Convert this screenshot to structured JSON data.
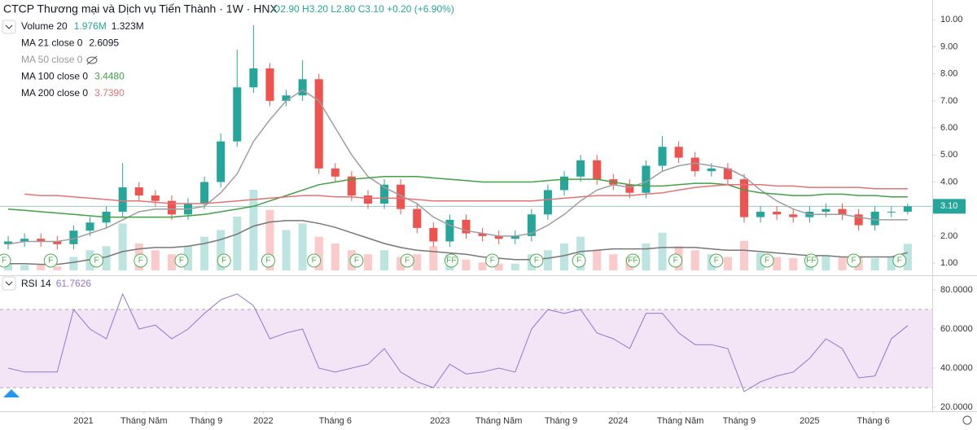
{
  "chart_data": {
    "type": "candlestick",
    "title": "CTCP Thương mại và Dịch vụ Tiến Thành · 1W · HNX",
    "ohlc_text": "O2.90 H3.20 L2.80 C3.10 +0.20 (+6.90%)",
    "legend": [
      {
        "name": "Volume 20",
        "values": [
          "1.976M",
          "1.323M"
        ]
      },
      {
        "name": "MA 21 close 0",
        "values": [
          "2.6095"
        ]
      },
      {
        "name": "MA 50 close 0",
        "values": []
      },
      {
        "name": "MA 100 close 0",
        "values": [
          "3.4480"
        ]
      },
      {
        "name": "MA 200 close 0",
        "values": [
          "3.7390"
        ]
      }
    ],
    "rsi_legend": {
      "name": "RSI 14",
      "value": "61.7626"
    },
    "price_label": "3.10",
    "x": [
      0,
      1,
      2,
      3,
      4,
      5,
      6,
      7,
      8,
      9,
      10,
      11,
      12,
      13,
      14,
      15,
      16,
      17,
      18,
      19,
      20,
      21,
      22,
      23,
      24,
      25,
      26,
      27,
      28,
      29,
      30,
      31,
      32,
      33,
      34,
      35,
      36,
      37,
      38,
      39,
      40,
      41,
      42,
      43,
      44,
      45,
      46,
      47,
      48,
      49,
      50,
      51,
      52,
      53,
      54,
      55
    ],
    "xlim": [
      -0.5,
      56.5
    ],
    "xticks": [
      {
        "value": 4.6,
        "label": "2021"
      },
      {
        "value": 8.3,
        "label": "Tháng Năm"
      },
      {
        "value": 12.1,
        "label": "Tháng 9"
      },
      {
        "value": 15.6,
        "label": "2022"
      },
      {
        "value": 20.0,
        "label": "Tháng 6"
      },
      {
        "value": 26.4,
        "label": "2023"
      },
      {
        "value": 30.0,
        "label": "Tháng Năm"
      },
      {
        "value": 33.8,
        "label": "Tháng 9"
      },
      {
        "value": 37.3,
        "label": "2024"
      },
      {
        "value": 41.1,
        "label": "Tháng Năm"
      },
      {
        "value": 44.7,
        "label": "Tháng 9"
      },
      {
        "value": 49.0,
        "label": "2025"
      },
      {
        "value": 52.9,
        "label": "Tháng 6"
      }
    ],
    "ylim": [
      0.55,
      10.73
    ],
    "yticks": [
      {
        "value": 1,
        "label": "1.00"
      },
      {
        "value": 2,
        "label": "2.00"
      },
      {
        "value": 3,
        "label": "3.00"
      },
      {
        "value": 4,
        "label": "4.00"
      },
      {
        "value": 5,
        "label": "5.00"
      },
      {
        "value": 6,
        "label": "6.00"
      },
      {
        "value": 7,
        "label": "7.00"
      },
      {
        "value": 8,
        "label": "8.00"
      },
      {
        "value": 9,
        "label": "9.00"
      },
      {
        "value": 10,
        "label": "10.00"
      }
    ],
    "up_color": "#26a69a",
    "down_color": "#ef5350",
    "open": [
      1.7,
      1.8,
      1.9,
      1.8,
      1.7,
      2.2,
      2.5,
      2.9,
      3.8,
      3.5,
      3.3,
      2.8,
      3.2,
      4.0,
      5.5,
      7.5,
      8.2,
      7.0,
      7.2,
      7.8,
      4.5,
      4.2,
      3.5,
      3.2,
      3.9,
      3.0,
      2.3,
      1.8,
      2.6,
      2.1,
      2.0,
      1.9,
      2.0,
      2.8,
      3.7,
      4.2,
      4.8,
      4.1,
      3.9,
      3.6,
      4.6,
      5.3,
      4.9,
      4.4,
      4.5,
      4.1,
      2.7,
      2.9,
      2.8,
      2.7,
      2.9,
      3.0,
      2.8,
      2.4,
      2.9,
      2.9
    ],
    "high": [
      2.0,
      2.1,
      2.1,
      2.0,
      2.4,
      2.7,
      3.1,
      4.7,
      4.0,
      3.7,
      3.5,
      3.4,
      4.2,
      5.8,
      8.9,
      9.8,
      8.4,
      7.4,
      8.5,
      8.0,
      4.7,
      4.4,
      3.7,
      4.1,
      4.1,
      3.2,
      2.5,
      2.8,
      2.8,
      2.3,
      2.2,
      2.2,
      3.0,
      3.9,
      4.4,
      5.0,
      5.0,
      4.3,
      4.1,
      4.8,
      5.7,
      5.5,
      5.1,
      4.7,
      4.7,
      4.3,
      3.1,
      3.1,
      3.0,
      3.1,
      3.2,
      3.2,
      3.0,
      3.1,
      3.1,
      3.2
    ],
    "low": [
      1.5,
      1.6,
      1.6,
      1.5,
      1.5,
      2.0,
      2.3,
      2.7,
      3.3,
      3.1,
      2.6,
      2.6,
      3.0,
      3.8,
      5.3,
      7.3,
      6.8,
      6.8,
      7.0,
      4.3,
      4.0,
      3.3,
      3.0,
      3.0,
      2.8,
      2.1,
      1.6,
      1.6,
      1.9,
      1.8,
      1.7,
      1.7,
      1.8,
      2.6,
      3.5,
      4.0,
      3.9,
      3.7,
      3.4,
      3.4,
      4.4,
      4.7,
      4.2,
      4.2,
      3.9,
      2.5,
      2.5,
      2.6,
      2.5,
      2.5,
      2.7,
      2.6,
      2.2,
      2.2,
      2.7,
      2.8
    ],
    "close": [
      1.8,
      1.9,
      1.8,
      1.7,
      2.2,
      2.5,
      2.9,
      3.8,
      3.5,
      3.3,
      2.8,
      3.2,
      4.0,
      5.5,
      7.5,
      8.2,
      7.0,
      7.2,
      7.8,
      4.5,
      4.2,
      3.5,
      3.2,
      3.9,
      3.0,
      2.3,
      1.8,
      2.6,
      2.1,
      2.0,
      1.9,
      2.0,
      2.8,
      3.7,
      4.2,
      4.8,
      4.1,
      3.9,
      3.6,
      4.6,
      5.3,
      4.9,
      4.4,
      4.5,
      4.1,
      2.7,
      2.9,
      2.8,
      2.7,
      2.9,
      3.0,
      2.8,
      2.4,
      2.9,
      2.9,
      3.1
    ],
    "series": [
      {
        "name": "MA 21",
        "color": "#9e9e9e",
        "values": [
          1.7,
          1.8,
          1.8,
          1.8,
          1.9,
          2.1,
          2.3,
          2.6,
          2.9,
          3.0,
          3.0,
          3.0,
          3.1,
          3.6,
          4.3,
          5.5,
          6.3,
          7.0,
          7.4,
          7.0,
          6.0,
          5.0,
          4.2,
          3.8,
          3.5,
          3.2,
          2.7,
          2.4,
          2.2,
          2.1,
          2.0,
          2.0,
          2.1,
          2.4,
          2.8,
          3.3,
          3.7,
          3.9,
          3.8,
          4.0,
          4.4,
          4.6,
          4.7,
          4.6,
          4.5,
          4.2,
          3.7,
          3.3,
          3.0,
          2.8,
          2.8,
          2.8,
          2.7,
          2.6,
          2.6,
          2.6
        ]
      },
      {
        "name": "MA 100",
        "color": "#43a047",
        "values": [
          3.0,
          2.95,
          2.9,
          2.85,
          2.8,
          2.75,
          2.7,
          2.7,
          2.7,
          2.7,
          2.7,
          2.75,
          2.8,
          2.9,
          3.0,
          3.1,
          3.3,
          3.5,
          3.7,
          3.9,
          4.0,
          4.1,
          4.15,
          4.2,
          4.2,
          4.2,
          4.15,
          4.1,
          4.05,
          4.0,
          4.0,
          4.0,
          4.0,
          4.05,
          4.1,
          4.1,
          4.1,
          4.0,
          3.9,
          3.85,
          3.85,
          3.9,
          3.95,
          3.95,
          3.9,
          3.7,
          3.6,
          3.55,
          3.5,
          3.5,
          3.55,
          3.55,
          3.5,
          3.5,
          3.45,
          3.45
        ]
      },
      {
        "name": "MA 200",
        "color": "#e57373",
        "values": [
          null,
          3.55,
          3.5,
          3.5,
          3.45,
          3.4,
          3.35,
          3.3,
          3.3,
          3.25,
          3.2,
          3.2,
          3.2,
          3.25,
          3.3,
          3.35,
          3.4,
          3.45,
          3.5,
          3.5,
          3.45,
          3.45,
          3.4,
          3.4,
          3.4,
          3.35,
          3.3,
          3.3,
          3.3,
          3.3,
          3.3,
          3.3,
          3.3,
          3.35,
          3.4,
          3.45,
          3.5,
          3.5,
          3.5,
          3.55,
          3.6,
          3.7,
          3.8,
          3.85,
          3.9,
          3.9,
          3.9,
          3.85,
          3.85,
          3.8,
          3.8,
          3.8,
          3.8,
          3.75,
          3.75,
          3.75
        ]
      }
    ],
    "volume_lim": [
      0,
      20
    ],
    "volume": [
      0.5,
      0.4,
      0.4,
      0.3,
      1.0,
      1.5,
      1.8,
      3.5,
      2.0,
      1.5,
      1.2,
      1.8,
      2.5,
      3.0,
      4.0,
      6.0,
      4.5,
      3.0,
      3.5,
      2.5,
      2.0,
      1.5,
      1.2,
      1.5,
      1.0,
      1.2,
      1.8,
      1.2,
      0.8,
      0.6,
      0.5,
      0.5,
      1.2,
      1.5,
      2.0,
      2.5,
      1.5,
      1.2,
      1.0,
      2.0,
      2.8,
      1.8,
      1.5,
      1.2,
      1.0,
      2.2,
      1.3,
      1.0,
      0.9,
      1.0,
      1.1,
      1.0,
      1.0,
      0.9,
      1.0,
      1.976
    ],
    "volume_ma": [
      0.5,
      0.5,
      0.45,
      0.45,
      0.6,
      0.8,
      1.0,
      1.4,
      1.6,
      1.7,
      1.7,
      1.8,
      2.0,
      2.3,
      2.7,
      3.3,
      3.6,
      3.7,
      3.7,
      3.5,
      3.2,
      2.8,
      2.4,
      2.0,
      1.7,
      1.5,
      1.4,
      1.3,
      1.2,
      1.0,
      0.9,
      0.8,
      0.8,
      0.9,
      1.1,
      1.4,
      1.5,
      1.6,
      1.6,
      1.6,
      1.7,
      1.7,
      1.7,
      1.6,
      1.5,
      1.5,
      1.4,
      1.3,
      1.2,
      1.1,
      1.1,
      1.0,
      1.0,
      1.0,
      1.0,
      1.323
    ],
    "events": {
      "x": [
        -0.25,
        2.6,
        5.4,
        8.1,
        10.6,
        13.2,
        15.9,
        18.7,
        21.3,
        24.4,
        27.1,
        29.6,
        32.3,
        34.9,
        38.2,
        40.8,
        43.3,
        46.4,
        49.1,
        51.7,
        54.5
      ],
      "labels": [
        "F",
        "F",
        "F",
        "F",
        "F",
        "F",
        "F",
        "F",
        "F",
        "F",
        "FF",
        "F",
        "F",
        "F",
        "FF",
        "F",
        "F",
        "F",
        "FF",
        "F",
        "F"
      ]
    },
    "rsi": {
      "color": "#9575cd",
      "ylim": [
        17.9,
        86.7
      ],
      "band": [
        30,
        70
      ],
      "yticks": [
        {
          "value": 20,
          "label": "20.0000"
        },
        {
          "value": 40,
          "label": "40.0000"
        },
        {
          "value": 60,
          "label": "60.0000"
        },
        {
          "value": 80,
          "label": "80.0000"
        }
      ],
      "values": [
        40,
        38,
        38,
        38,
        70,
        60,
        55,
        78,
        60,
        62,
        55,
        60,
        68,
        75,
        78,
        72,
        55,
        58,
        60,
        40,
        38,
        40,
        42,
        50,
        38,
        33,
        30,
        42,
        37,
        38,
        40,
        38,
        60,
        70,
        68,
        70,
        58,
        55,
        50,
        68,
        68,
        58,
        52,
        52,
        50,
        28,
        33,
        36,
        38,
        45,
        55,
        50,
        35,
        36,
        55,
        61.7626
      ]
    }
  }
}
